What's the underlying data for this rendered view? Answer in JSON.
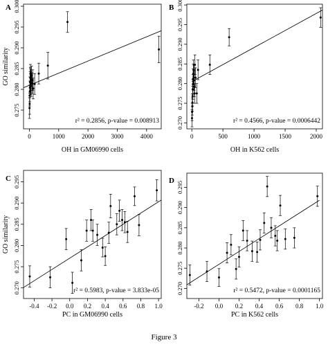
{
  "figure_caption": "Figure 3",
  "chart_data": [
    {
      "type": "scatter",
      "panel_label": "A",
      "xlabel": "OH in GM06990 cells",
      "ylabel": "GO similarity",
      "annotation": "r² = 0.2856, p-value = 0.008913",
      "xlim": [
        -200,
        4500
      ],
      "ylim": [
        0.2705,
        0.3005
      ],
      "xticks": [
        0,
        1000,
        2000,
        3000,
        4000
      ],
      "xtick_labels": [
        "0",
        "1000",
        "2000",
        "3000",
        "4000"
      ],
      "yticks": [
        0.275,
        0.28,
        0.285,
        0.29,
        0.295,
        0.3
      ],
      "ytick_labels": [
        "0.275",
        "0.280",
        "0.285",
        "0.290",
        "0.295",
        "0.300"
      ],
      "regression": {
        "x": [
          -200,
          4500
        ],
        "y": [
          0.2804,
          0.2941
        ]
      },
      "points": [
        {
          "x": 5,
          "y": 0.2755,
          "err": 0.0025
        },
        {
          "x": 10,
          "y": 0.2765,
          "err": 0.0025
        },
        {
          "x": 8,
          "y": 0.2785,
          "err": 0.0025
        },
        {
          "x": 15,
          "y": 0.2795,
          "err": 0.0025
        },
        {
          "x": 20,
          "y": 0.2805,
          "err": 0.0025
        },
        {
          "x": 25,
          "y": 0.2818,
          "err": 0.0025
        },
        {
          "x": 30,
          "y": 0.2828,
          "err": 0.0025
        },
        {
          "x": 35,
          "y": 0.2838,
          "err": 0.0022
        },
        {
          "x": 40,
          "y": 0.2828,
          "err": 0.0022
        },
        {
          "x": 45,
          "y": 0.2812,
          "err": 0.0025
        },
        {
          "x": 55,
          "y": 0.2822,
          "err": 0.0025
        },
        {
          "x": 60,
          "y": 0.2808,
          "err": 0.0025
        },
        {
          "x": 75,
          "y": 0.2834,
          "err": 0.0022
        },
        {
          "x": 90,
          "y": 0.2815,
          "err": 0.0025
        },
        {
          "x": 110,
          "y": 0.2822,
          "err": 0.0025
        },
        {
          "x": 130,
          "y": 0.2802,
          "err": 0.0025
        },
        {
          "x": 180,
          "y": 0.2813,
          "err": 0.0025
        },
        {
          "x": 320,
          "y": 0.2838,
          "err": 0.0025
        },
        {
          "x": 630,
          "y": 0.2857,
          "err": 0.0032
        },
        {
          "x": 1300,
          "y": 0.2962,
          "err": 0.0025
        },
        {
          "x": 4420,
          "y": 0.2896,
          "err": 0.0032
        }
      ]
    },
    {
      "type": "scatter",
      "panel_label": "B",
      "xlabel": "OH in K562 cells",
      "ylabel": "",
      "annotation": "r² = 0.4566, p-value = 0.0006442",
      "xlim": [
        -80,
        2100
      ],
      "ylim": [
        0.2685,
        0.3002
      ],
      "xticks": [
        0,
        500,
        1000,
        1500,
        2000
      ],
      "xtick_labels": [
        "0",
        "500",
        "1000",
        "1500",
        "2000"
      ],
      "yticks": [
        0.27,
        0.275,
        0.28,
        0.285,
        0.29,
        0.295,
        0.3
      ],
      "ytick_labels": [
        "0.270",
        "0.275",
        "0.280",
        "0.285",
        "0.290",
        "0.295",
        "0.300"
      ],
      "regression": {
        "x": [
          0,
          2100
        ],
        "y": [
          0.2805,
          0.2987
        ]
      },
      "points": [
        {
          "x": 3,
          "y": 0.2712,
          "err": 0.0022
        },
        {
          "x": 5,
          "y": 0.2728,
          "err": 0.0022
        },
        {
          "x": 8,
          "y": 0.2742,
          "err": 0.0022
        },
        {
          "x": 10,
          "y": 0.2752,
          "err": 0.0022
        },
        {
          "x": 12,
          "y": 0.2768,
          "err": 0.0025
        },
        {
          "x": 15,
          "y": 0.2785,
          "err": 0.0025
        },
        {
          "x": 18,
          "y": 0.2798,
          "err": 0.0025
        },
        {
          "x": 20,
          "y": 0.2812,
          "err": 0.0025
        },
        {
          "x": 24,
          "y": 0.2825,
          "err": 0.0025
        },
        {
          "x": 28,
          "y": 0.2835,
          "err": 0.0025
        },
        {
          "x": 32,
          "y": 0.2822,
          "err": 0.0025
        },
        {
          "x": 36,
          "y": 0.2808,
          "err": 0.0025
        },
        {
          "x": 40,
          "y": 0.2792,
          "err": 0.0025
        },
        {
          "x": 45,
          "y": 0.2775,
          "err": 0.0025
        },
        {
          "x": 50,
          "y": 0.2848,
          "err": 0.0025
        },
        {
          "x": 60,
          "y": 0.2815,
          "err": 0.0025
        },
        {
          "x": 80,
          "y": 0.2775,
          "err": 0.0025
        },
        {
          "x": 100,
          "y": 0.2835,
          "err": 0.0025
        },
        {
          "x": 290,
          "y": 0.2848,
          "err": 0.0025
        },
        {
          "x": 600,
          "y": 0.2918,
          "err": 0.0022
        },
        {
          "x": 2070,
          "y": 0.2968,
          "err": 0.0025
        }
      ]
    },
    {
      "type": "scatter",
      "panel_label": "C",
      "xlabel": "PC in GM06990 cells",
      "ylabel": "GO similarity",
      "annotation": "r² = 0.5983, p-value = 3.833e-05",
      "xlim": [
        -0.52,
        1.03
      ],
      "ylim": [
        0.2675,
        0.2977
      ],
      "xticks": [
        -0.4,
        -0.2,
        0.0,
        0.2,
        0.4,
        0.6,
        0.8,
        1.0
      ],
      "xtick_labels": [
        "-0.4",
        "-0.2",
        "0.0",
        "0.2",
        "0.4",
        "0.6",
        "0.8",
        "1.0"
      ],
      "yticks": [
        0.27,
        0.275,
        0.28,
        0.285,
        0.29,
        0.295
      ],
      "ytick_labels": [
        "0.270",
        "0.275",
        "0.280",
        "0.285",
        "0.290",
        "0.295"
      ],
      "regression": {
        "x": [
          -0.52,
          1.03
        ],
        "y": [
          0.2701,
          0.2907
        ]
      },
      "points": [
        {
          "x": -0.45,
          "y": 0.2727,
          "err": 0.0025
        },
        {
          "x": -0.22,
          "y": 0.2725,
          "err": 0.0025
        },
        {
          "x": -0.04,
          "y": 0.2815,
          "err": 0.0025
        },
        {
          "x": 0.03,
          "y": 0.2712,
          "err": 0.0025
        },
        {
          "x": 0.13,
          "y": 0.2765,
          "err": 0.0025
        },
        {
          "x": 0.19,
          "y": 0.2835,
          "err": 0.0025
        },
        {
          "x": 0.24,
          "y": 0.286,
          "err": 0.0025
        },
        {
          "x": 0.26,
          "y": 0.2835,
          "err": 0.0025
        },
        {
          "x": 0.31,
          "y": 0.2825,
          "err": 0.0025
        },
        {
          "x": 0.37,
          "y": 0.2795,
          "err": 0.0022
        },
        {
          "x": 0.4,
          "y": 0.2775,
          "err": 0.0022
        },
        {
          "x": 0.44,
          "y": 0.283,
          "err": 0.0025
        },
        {
          "x": 0.46,
          "y": 0.2893,
          "err": 0.0028
        },
        {
          "x": 0.53,
          "y": 0.285,
          "err": 0.0025
        },
        {
          "x": 0.56,
          "y": 0.2882,
          "err": 0.0025
        },
        {
          "x": 0.59,
          "y": 0.286,
          "err": 0.0025
        },
        {
          "x": 0.62,
          "y": 0.2855,
          "err": 0.0025
        },
        {
          "x": 0.65,
          "y": 0.2832,
          "err": 0.0025
        },
        {
          "x": 0.73,
          "y": 0.2916,
          "err": 0.0022
        },
        {
          "x": 0.78,
          "y": 0.2848,
          "err": 0.0025
        },
        {
          "x": 0.98,
          "y": 0.293,
          "err": 0.0025
        }
      ]
    },
    {
      "type": "scatter",
      "panel_label": "D",
      "xlabel": "PC in K562 cells",
      "ylabel": "",
      "annotation": "r² = 0.5472, p-value = 0.0001165",
      "xlim": [
        -0.32,
        1.03
      ],
      "ylim": [
        0.2675,
        0.2985
      ],
      "xticks": [
        -0.2,
        0.0,
        0.2,
        0.4,
        0.6,
        0.8,
        1.0
      ],
      "xtick_labels": [
        "-0.2",
        "0.0",
        "0.2",
        "0.4",
        "0.6",
        "0.8",
        "1.0"
      ],
      "yticks": [
        0.27,
        0.275,
        0.28,
        0.285,
        0.29,
        0.295
      ],
      "ytick_labels": [
        "0.270",
        "0.275",
        "0.280",
        "0.285",
        "0.290",
        "0.295"
      ],
      "regression": {
        "x": [
          -0.32,
          1.0
        ],
        "y": [
          0.2709,
          0.2918
        ]
      },
      "points": [
        {
          "x": -0.29,
          "y": 0.2733,
          "err": 0.0025
        },
        {
          "x": -0.12,
          "y": 0.2742,
          "err": 0.0025
        },
        {
          "x": 0.0,
          "y": 0.2727,
          "err": 0.0022
        },
        {
          "x": 0.08,
          "y": 0.2788,
          "err": 0.0025
        },
        {
          "x": 0.12,
          "y": 0.2808,
          "err": 0.0025
        },
        {
          "x": 0.17,
          "y": 0.2748,
          "err": 0.0025
        },
        {
          "x": 0.2,
          "y": 0.2778,
          "err": 0.0025
        },
        {
          "x": 0.24,
          "y": 0.2843,
          "err": 0.0025
        },
        {
          "x": 0.28,
          "y": 0.2818,
          "err": 0.0025
        },
        {
          "x": 0.33,
          "y": 0.2792,
          "err": 0.0025
        },
        {
          "x": 0.38,
          "y": 0.279,
          "err": 0.0025
        },
        {
          "x": 0.41,
          "y": 0.282,
          "err": 0.0025
        },
        {
          "x": 0.45,
          "y": 0.2862,
          "err": 0.0025
        },
        {
          "x": 0.48,
          "y": 0.2952,
          "err": 0.0025
        },
        {
          "x": 0.52,
          "y": 0.285,
          "err": 0.0025
        },
        {
          "x": 0.56,
          "y": 0.283,
          "err": 0.0025
        },
        {
          "x": 0.58,
          "y": 0.2818,
          "err": 0.0025
        },
        {
          "x": 0.61,
          "y": 0.2905,
          "err": 0.0025
        },
        {
          "x": 0.66,
          "y": 0.2822,
          "err": 0.0025
        },
        {
          "x": 0.75,
          "y": 0.2825,
          "err": 0.0025
        },
        {
          "x": 0.98,
          "y": 0.2928,
          "err": 0.0025
        }
      ]
    }
  ]
}
